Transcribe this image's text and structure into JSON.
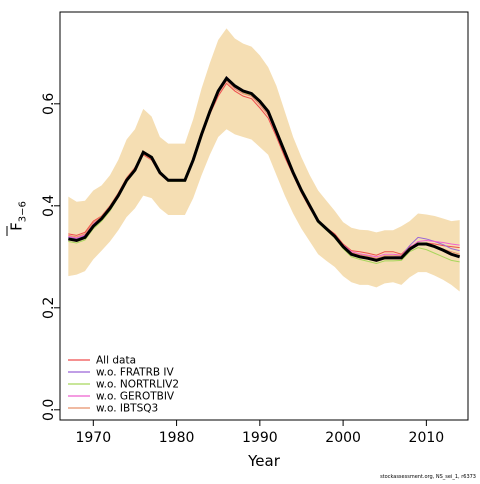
{
  "chart_data": {
    "type": "line",
    "title": "",
    "xlabel": "Year",
    "ylabel": "F̅ 3–6",
    "ylabel_main": "F",
    "ylabel_sub": "3−6",
    "credit": "stockassessment.org, NS_sei_1, r6373",
    "xlim": [
      1966,
      2015
    ],
    "ylim": [
      -0.02,
      0.78
    ],
    "x_ticks": [
      1970,
      1980,
      1990,
      2000,
      2010
    ],
    "x_tick_labels": [
      "1970",
      "1980",
      "1990",
      "2000",
      "2010"
    ],
    "y_ticks": [
      0.0,
      0.2,
      0.4,
      0.6
    ],
    "y_tick_labels": [
      "0.0",
      "0.2",
      "0.4",
      "0.6"
    ],
    "legend_position": "bottom-left",
    "grid": false,
    "x": [
      1967,
      1968,
      1969,
      1970,
      1971,
      1972,
      1973,
      1974,
      1975,
      1976,
      1977,
      1978,
      1979,
      1980,
      1981,
      1982,
      1983,
      1984,
      1985,
      1986,
      1987,
      1988,
      1989,
      1990,
      1991,
      1992,
      1993,
      1994,
      1995,
      1996,
      1997,
      1998,
      1999,
      2000,
      2001,
      2002,
      2003,
      2004,
      2005,
      2006,
      2007,
      2008,
      2009,
      2010,
      2011,
      2012,
      2013,
      2014
    ],
    "estimate": [
      0.335,
      0.332,
      0.338,
      0.36,
      0.375,
      0.395,
      0.42,
      0.45,
      0.47,
      0.505,
      0.495,
      0.465,
      0.45,
      0.45,
      0.45,
      0.49,
      0.54,
      0.585,
      0.625,
      0.65,
      0.635,
      0.625,
      0.62,
      0.605,
      0.585,
      0.545,
      0.505,
      0.465,
      0.43,
      0.4,
      0.37,
      0.355,
      0.34,
      0.32,
      0.305,
      0.3,
      0.297,
      0.293,
      0.298,
      0.298,
      0.298,
      0.315,
      0.325,
      0.325,
      0.32,
      0.313,
      0.305,
      0.3
    ],
    "ci_upper": [
      0.418,
      0.408,
      0.41,
      0.43,
      0.44,
      0.46,
      0.49,
      0.53,
      0.55,
      0.59,
      0.575,
      0.535,
      0.522,
      0.522,
      0.522,
      0.57,
      0.63,
      0.68,
      0.725,
      0.748,
      0.728,
      0.718,
      0.712,
      0.695,
      0.672,
      0.635,
      0.585,
      0.535,
      0.495,
      0.46,
      0.43,
      0.41,
      0.39,
      0.368,
      0.357,
      0.353,
      0.352,
      0.348,
      0.352,
      0.352,
      0.36,
      0.37,
      0.385,
      0.383,
      0.38,
      0.375,
      0.37,
      0.372
    ],
    "ci_lower": [
      0.262,
      0.265,
      0.272,
      0.295,
      0.312,
      0.33,
      0.352,
      0.378,
      0.395,
      0.42,
      0.415,
      0.395,
      0.382,
      0.382,
      0.382,
      0.415,
      0.46,
      0.5,
      0.535,
      0.55,
      0.54,
      0.535,
      0.53,
      0.515,
      0.5,
      0.46,
      0.42,
      0.385,
      0.355,
      0.33,
      0.305,
      0.292,
      0.28,
      0.262,
      0.25,
      0.245,
      0.245,
      0.24,
      0.248,
      0.25,
      0.245,
      0.26,
      0.27,
      0.27,
      0.263,
      0.255,
      0.245,
      0.232
    ],
    "estimate_color": "#000000",
    "ci_color": "#f5deb3",
    "series": [
      {
        "name": "All data",
        "color": "#ef4e4e",
        "values": [
          0.345,
          0.342,
          0.348,
          0.37,
          0.38,
          0.4,
          0.425,
          0.455,
          0.475,
          0.5,
          0.49,
          0.462,
          0.448,
          0.448,
          0.448,
          0.49,
          0.535,
          0.58,
          0.615,
          0.64,
          0.625,
          0.615,
          0.61,
          0.592,
          0.572,
          0.535,
          0.495,
          0.46,
          0.425,
          0.395,
          0.37,
          0.357,
          0.345,
          0.325,
          0.312,
          0.31,
          0.307,
          0.303,
          0.31,
          0.31,
          0.305,
          0.32,
          0.325,
          0.327,
          0.325,
          0.322,
          0.32,
          0.318
        ]
      },
      {
        "name": "w.o. FRATRB IV",
        "color": "#9a65d6",
        "values": [
          0.338,
          0.335,
          0.341,
          0.363,
          0.377,
          0.397,
          0.421,
          0.451,
          0.471,
          0.505,
          0.495,
          0.466,
          0.451,
          0.451,
          0.451,
          0.491,
          0.541,
          0.587,
          0.628,
          0.653,
          0.637,
          0.627,
          0.622,
          0.607,
          0.587,
          0.547,
          0.507,
          0.467,
          0.432,
          0.402,
          0.372,
          0.357,
          0.342,
          0.322,
          0.307,
          0.302,
          0.299,
          0.295,
          0.3,
          0.3,
          0.302,
          0.322,
          0.338,
          0.335,
          0.33,
          0.324,
          0.316,
          0.312
        ]
      },
      {
        "name": "w.o. NORTRLIV2",
        "color": "#a8d65c",
        "values": [
          0.33,
          0.327,
          0.333,
          0.355,
          0.37,
          0.39,
          0.417,
          0.447,
          0.468,
          0.502,
          0.492,
          0.463,
          0.448,
          0.448,
          0.448,
          0.487,
          0.537,
          0.582,
          0.622,
          0.648,
          0.632,
          0.622,
          0.617,
          0.602,
          0.582,
          0.542,
          0.502,
          0.462,
          0.427,
          0.397,
          0.367,
          0.352,
          0.337,
          0.316,
          0.3,
          0.295,
          0.291,
          0.287,
          0.292,
          0.292,
          0.293,
          0.31,
          0.318,
          0.314,
          0.307,
          0.3,
          0.293,
          0.29
        ]
      },
      {
        "name": "w.o. GEROTBIV",
        "color": "#ee62cf",
        "values": [
          0.34,
          0.337,
          0.343,
          0.365,
          0.378,
          0.398,
          0.423,
          0.453,
          0.473,
          0.503,
          0.493,
          0.464,
          0.449,
          0.449,
          0.449,
          0.489,
          0.538,
          0.583,
          0.62,
          0.645,
          0.63,
          0.62,
          0.615,
          0.598,
          0.578,
          0.54,
          0.5,
          0.463,
          0.428,
          0.398,
          0.37,
          0.355,
          0.342,
          0.323,
          0.31,
          0.306,
          0.303,
          0.3,
          0.305,
          0.305,
          0.303,
          0.318,
          0.33,
          0.332,
          0.33,
          0.328,
          0.325,
          0.323
        ]
      },
      {
        "name": "w.o. IBTSQ3",
        "color": "#e8906a",
        "values": [
          0.342,
          0.339,
          0.345,
          0.367,
          0.379,
          0.399,
          0.424,
          0.454,
          0.474,
          0.502,
          0.492,
          0.464,
          0.449,
          0.449,
          0.449,
          0.49,
          0.537,
          0.583,
          0.62,
          0.645,
          0.629,
          0.62,
          0.615,
          0.598,
          0.578,
          0.54,
          0.5,
          0.462,
          0.427,
          0.397,
          0.37,
          0.355,
          0.342,
          0.322,
          0.308,
          0.304,
          0.301,
          0.297,
          0.302,
          0.302,
          0.302,
          0.318,
          0.325,
          0.324,
          0.32,
          0.315,
          0.31,
          0.305
        ]
      }
    ]
  }
}
